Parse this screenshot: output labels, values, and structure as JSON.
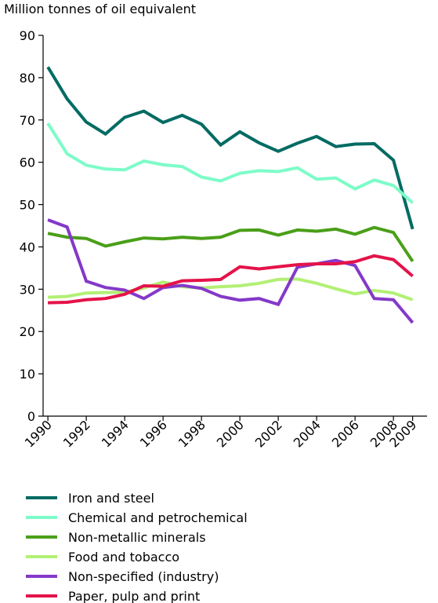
{
  "chart_data": {
    "type": "line",
    "ylabel": "Million tonnes of oil equivalent",
    "ylim": [
      0,
      90
    ],
    "y_ticks": [
      0,
      10,
      20,
      30,
      40,
      50,
      60,
      70,
      80,
      90
    ],
    "x": [
      1990,
      1991,
      1992,
      1993,
      1994,
      1995,
      1996,
      1997,
      1998,
      1999,
      2000,
      2001,
      2002,
      2003,
      2004,
      2005,
      2006,
      2007,
      2008,
      2009
    ],
    "x_tick_labels": [
      "1990",
      "1992",
      "1994",
      "1996",
      "1998",
      "2000",
      "2002",
      "2004",
      "2006",
      "2008",
      "2009"
    ],
    "x_tick_values": [
      1990,
      1992,
      1994,
      1996,
      1998,
      2000,
      2002,
      2004,
      2006,
      2008,
      2009
    ],
    "grid": false,
    "legend_position": "bottom",
    "series": [
      {
        "name": "Iron and steel",
        "color": "#006b63",
        "values": [
          82.5,
          75,
          69.5,
          66.7,
          70.6,
          72.1,
          69.4,
          71.1,
          69,
          64.1,
          67.2,
          64.6,
          62.6,
          64.5,
          66.1,
          63.7,
          64.3,
          64.4,
          60.5,
          44.2
        ]
      },
      {
        "name": "Chemical and petrochemical",
        "color": "#7dfcc8",
        "values": [
          69.2,
          62,
          59.3,
          58.4,
          58.2,
          60.3,
          59.4,
          59,
          56.5,
          55.6,
          57.4,
          58,
          57.8,
          58.7,
          56,
          56.3,
          53.7,
          55.8,
          54.5,
          50.4
        ]
      },
      {
        "name": "Non-metallic minerals",
        "color": "#4a9f19",
        "values": [
          43.2,
          42.3,
          42,
          40.2,
          41.2,
          42.1,
          41.9,
          42.3,
          42,
          42.3,
          43.9,
          44,
          42.8,
          44,
          43.7,
          44.2,
          43,
          44.6,
          43.4,
          36.6
        ]
      },
      {
        "name": "Food and tobacco",
        "color": "#b2f075",
        "values": [
          28.1,
          28.3,
          29.1,
          29.2,
          29.3,
          30.3,
          31.7,
          30.6,
          30.3,
          30.6,
          30.8,
          31.4,
          32.3,
          32.4,
          31.4,
          30.1,
          28.9,
          29.7,
          29.1,
          27.5
        ]
      },
      {
        "name": "Non-specified (industry)",
        "color": "#8439c9",
        "values": [
          46.4,
          44.7,
          31.9,
          30.4,
          29.8,
          27.8,
          30.4,
          30.9,
          30.2,
          28.3,
          27.4,
          27.8,
          26.4,
          35.2,
          36,
          36.8,
          35.6,
          27.8,
          27.5,
          22.1
        ]
      },
      {
        "name": "Paper, pulp and print",
        "color": "#e4134a",
        "values": [
          26.8,
          26.9,
          27.5,
          27.8,
          28.8,
          30.8,
          30.7,
          32,
          32.1,
          32.3,
          35.3,
          34.8,
          35.3,
          35.8,
          36,
          36,
          36.5,
          37.9,
          37,
          33.1
        ]
      }
    ]
  }
}
